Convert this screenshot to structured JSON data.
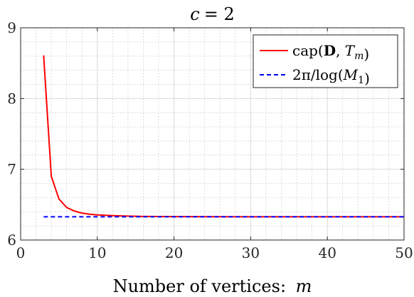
{
  "chart_data": {
    "type": "line",
    "title": "c = 2",
    "xlabel": "Number of vertices: m",
    "ylabel": "",
    "xlim": [
      0,
      50
    ],
    "ylim": [
      6,
      9
    ],
    "xticks": [
      0,
      10,
      20,
      30,
      40,
      50
    ],
    "yticks": [
      6,
      7,
      8,
      9
    ],
    "grid": true,
    "minor_grid": true,
    "legend_position": "top-right",
    "series": [
      {
        "name": "cap(D, T_m)",
        "color": "#ff0000",
        "style": "solid",
        "x": [
          3,
          4,
          5,
          6,
          7,
          8,
          9,
          10,
          12,
          14,
          16,
          18,
          20,
          25,
          30,
          35,
          40,
          45,
          50
        ],
        "y": [
          8.61,
          6.9,
          6.58,
          6.46,
          6.41,
          6.38,
          6.365,
          6.355,
          6.345,
          6.338,
          6.334,
          6.332,
          6.331,
          6.3295,
          6.329,
          6.3288,
          6.3287,
          6.3286,
          6.3286
        ]
      },
      {
        "name": "2π/log(M_1)",
        "color": "#0000ff",
        "style": "dashed",
        "x": [
          3,
          50
        ],
        "y": [
          6.3285,
          6.3285
        ]
      }
    ]
  }
}
